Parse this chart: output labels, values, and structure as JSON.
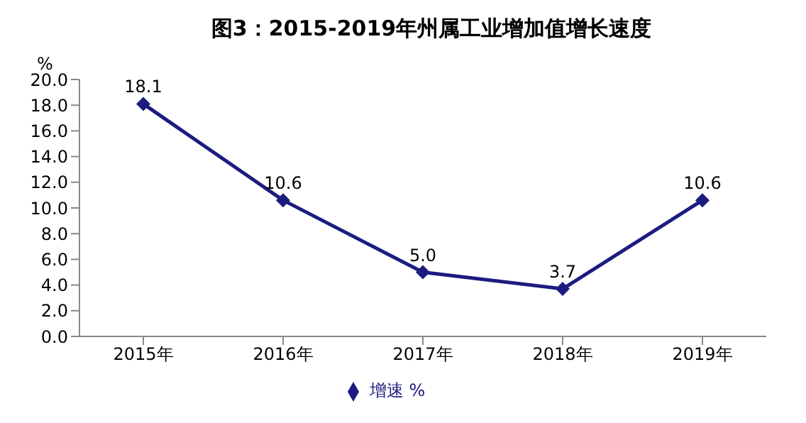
{
  "chart_data": {
    "type": "line",
    "title": "图3：2015-2019年州属工业增加值增长速度",
    "ylabel": "%",
    "categories": [
      "2015年",
      "2016年",
      "2017年",
      "2018年",
      "2019年"
    ],
    "series": [
      {
        "name": "增速 %",
        "color": "#1c1c80",
        "values": [
          18.1,
          10.6,
          5.0,
          3.7,
          10.6
        ],
        "value_labels": [
          "18.1",
          "10.6",
          "5.0",
          "3.7",
          "10.6"
        ]
      }
    ],
    "ylim": [
      0,
      20
    ],
    "yticks": [
      {
        "value": 0,
        "label": "0.0"
      },
      {
        "value": 2,
        "label": "2.0"
      },
      {
        "value": 4,
        "label": "4.0"
      },
      {
        "value": 6,
        "label": "6.0"
      },
      {
        "value": 8,
        "label": "8.0"
      },
      {
        "value": 10,
        "label": "10.0"
      },
      {
        "value": 12,
        "label": "12.0"
      },
      {
        "value": 14,
        "label": "14.0"
      },
      {
        "value": 16,
        "label": "16.0"
      },
      {
        "value": 18,
        "label": "18.0"
      },
      {
        "value": 20,
        "label": "20.0"
      }
    ],
    "grid": false,
    "legend": "bottom",
    "marker": "diamond",
    "line_style": "solid"
  }
}
